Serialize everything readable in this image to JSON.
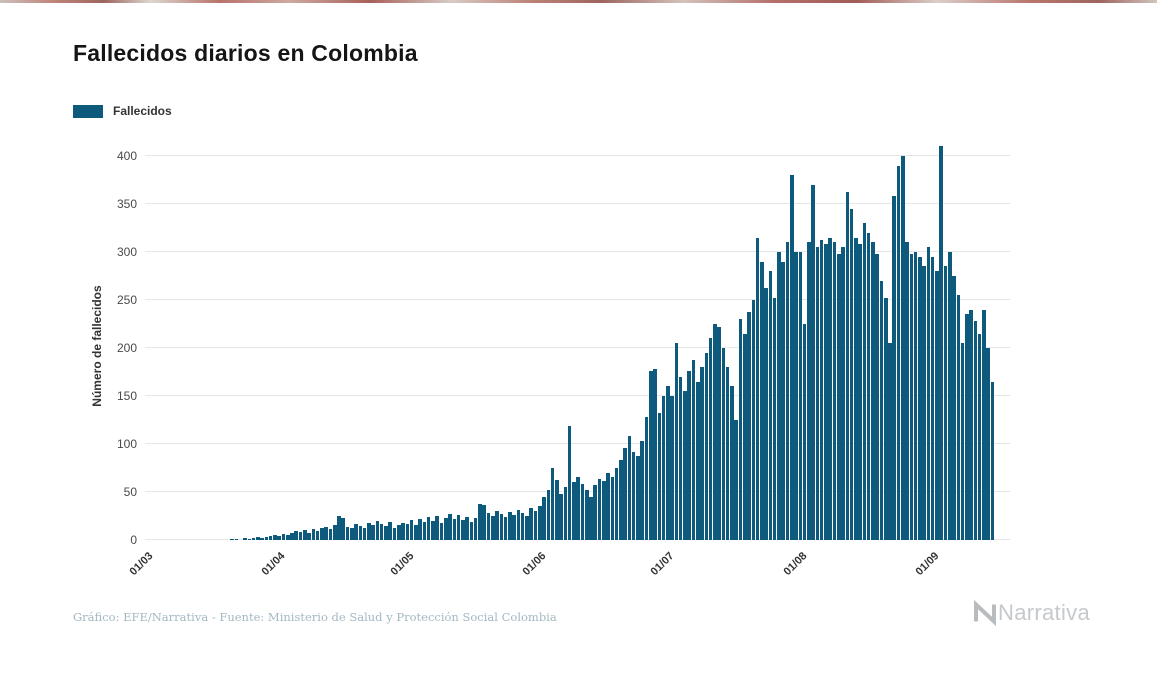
{
  "page": {
    "title": "Fallecidos diarios en Colombia",
    "credit": "Gráfico: EFE/Narrativa - Fuente: Ministerio de Salud y Protección Social Colombia",
    "brand": "Narrativa"
  },
  "legend": {
    "label": "Fallecidos"
  },
  "chart_data": {
    "type": "bar",
    "title": "Fallecidos diarios en Colombia",
    "xlabel": "",
    "ylabel": "Número de fallecidos",
    "ylim": [
      0,
      400
    ],
    "y_ticks": [
      0,
      50,
      100,
      150,
      200,
      250,
      300,
      350,
      400
    ],
    "x_tick_labels": [
      "01/03",
      "01/04",
      "01/05",
      "01/06",
      "01/07",
      "01/08",
      "01/09"
    ],
    "x_tick_day_index": [
      0,
      31,
      61,
      92,
      122,
      153,
      184
    ],
    "grid": true,
    "legend_position": "top-left",
    "bar_color": "#0e5a7c",
    "series": [
      {
        "name": "Fallecidos",
        "start_label": "01/03",
        "frequency": "daily",
        "values": [
          0,
          0,
          0,
          0,
          0,
          0,
          0,
          0,
          0,
          0,
          0,
          0,
          0,
          0,
          0,
          0,
          0,
          0,
          0,
          0,
          1,
          1,
          0,
          2,
          1,
          2,
          3,
          2,
          3,
          4,
          5,
          4,
          6,
          5,
          7,
          9,
          8,
          10,
          7,
          11,
          9,
          12,
          14,
          11,
          16,
          25,
          23,
          14,
          12,
          17,
          15,
          13,
          18,
          16,
          20,
          17,
          15,
          19,
          13,
          16,
          18,
          17,
          21,
          16,
          22,
          19,
          24,
          20,
          25,
          18,
          23,
          27,
          22,
          26,
          21,
          24,
          19,
          23,
          38,
          36,
          28,
          25,
          30,
          27,
          24,
          29,
          26,
          31,
          28,
          25,
          33,
          30,
          35,
          45,
          52,
          75,
          62,
          48,
          55,
          119,
          60,
          66,
          58,
          52,
          45,
          57,
          64,
          61,
          70,
          66,
          75,
          83,
          96,
          108,
          92,
          88,
          103,
          128,
          176,
          178,
          132,
          150,
          160,
          150,
          205,
          170,
          155,
          176,
          188,
          165,
          180,
          195,
          210,
          225,
          222,
          200,
          180,
          160,
          125,
          230,
          215,
          238,
          250,
          315,
          290,
          262,
          280,
          252,
          300,
          290,
          310,
          380,
          300,
          300,
          225,
          310,
          370,
          305,
          312,
          308,
          315,
          310,
          298,
          305,
          362,
          345,
          315,
          308,
          330,
          320,
          310,
          298,
          270,
          252,
          205,
          358,
          390,
          400,
          310,
          298,
          300,
          295,
          285,
          305,
          295,
          280,
          410,
          285,
          300,
          275,
          255,
          205,
          235,
          240,
          228,
          215,
          240,
          200,
          165
        ]
      }
    ]
  }
}
